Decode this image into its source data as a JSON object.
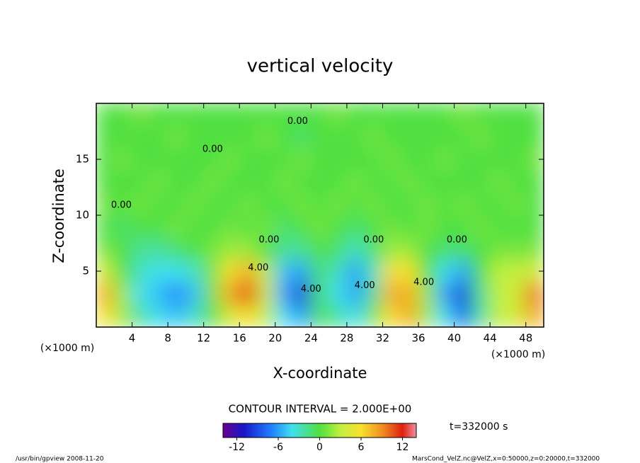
{
  "chart_data": {
    "type": "heatmap",
    "title": "vertical velocity",
    "xlabel": "X-coordinate",
    "ylabel": "Z-coordinate",
    "x_unit": "(×1000 m)",
    "y_unit": "(×1000 m)",
    "contour_interval": "CONTOUR INTERVAL = 2.000E+00",
    "time_label": "t=332000 s",
    "footer_left": "/usr/bin/gpview  2008-11-20",
    "footer_right": "MarsCond_VelZ.nc@VelZ,x=0:50000,z=0:20000,t=332000",
    "x": [
      1,
      3,
      5,
      7,
      9,
      11,
      13,
      15,
      17,
      19,
      21,
      23,
      25,
      27,
      29,
      31,
      33,
      35,
      37,
      39,
      41,
      43,
      45,
      47,
      49
    ],
    "y": [
      1,
      3,
      5,
      7,
      9,
      11,
      13,
      15,
      17,
      19
    ],
    "z": [
      [
        6,
        2,
        -2,
        -4,
        -5,
        -3,
        0,
        4,
        6,
        3,
        -4,
        -6,
        0,
        -2,
        -4,
        1,
        6,
        8,
        2,
        -4,
        -8,
        -2,
        3,
        4,
        8
      ],
      [
        8,
        2,
        -4,
        -5,
        -7,
        -5,
        1,
        8,
        12,
        4,
        -6,
        -10,
        -1,
        -4,
        -6,
        -2,
        8,
        8,
        2,
        -6,
        -10,
        -2,
        3,
        4,
        10
      ],
      [
        4,
        0,
        -3,
        -4,
        -4,
        -3,
        1,
        6,
        8,
        3,
        -5,
        -6,
        -1,
        -3,
        -6,
        -3,
        6,
        6,
        0,
        -4,
        -6,
        0,
        3,
        3,
        4
      ],
      [
        1,
        0,
        -2,
        -2,
        -1,
        0,
        1,
        2,
        2,
        0,
        -2,
        -2,
        0,
        -1,
        -3,
        -1,
        2,
        2,
        0,
        -1,
        -1,
        0,
        1,
        1,
        1
      ],
      [
        0,
        -1,
        0,
        0,
        1,
        0,
        0,
        1,
        0,
        1,
        -1,
        0,
        1,
        0,
        -1,
        0,
        1,
        0,
        1,
        0,
        0,
        1,
        0,
        0,
        0
      ],
      [
        1,
        0,
        1,
        0,
        0,
        1,
        0,
        0,
        1,
        0,
        0,
        1,
        0,
        1,
        0,
        1,
        0,
        0,
        1,
        0,
        1,
        0,
        0,
        1,
        0
      ],
      [
        0,
        0,
        0,
        1,
        0,
        0,
        1,
        0,
        0,
        0,
        1,
        0,
        0,
        0,
        1,
        0,
        0,
        1,
        0,
        0,
        0,
        0,
        1,
        0,
        0
      ],
      [
        0,
        1,
        0,
        0,
        0,
        0,
        0,
        1,
        0,
        0,
        0,
        1,
        0,
        0,
        0,
        0,
        1,
        0,
        0,
        1,
        0,
        0,
        0,
        0,
        1
      ],
      [
        0,
        0,
        0,
        0,
        1,
        0,
        0,
        0,
        0,
        1,
        0,
        -1,
        0,
        0,
        0,
        1,
        0,
        0,
        0,
        0,
        0,
        1,
        0,
        0,
        0
      ],
      [
        0,
        0,
        1,
        0,
        0,
        0,
        0,
        0,
        0,
        0,
        0,
        0,
        0,
        1,
        0,
        0,
        0,
        0,
        0,
        0,
        1,
        0,
        0,
        0,
        0
      ]
    ],
    "xlim": [
      0,
      50
    ],
    "ylim": [
      0,
      20
    ],
    "xticks": [
      4,
      8,
      12,
      16,
      20,
      24,
      28,
      32,
      36,
      40,
      44,
      48
    ],
    "yticks": [
      5,
      10,
      15
    ],
    "zlim": [
      -14,
      14
    ],
    "colorbar_ticks": [
      -12,
      -6,
      0,
      6,
      12
    ],
    "colormap": [
      {
        "value": -14,
        "color": "#6a0090"
      },
      {
        "value": -11,
        "color": "#1818c8"
      },
      {
        "value": -7,
        "color": "#2080ff"
      },
      {
        "value": -4,
        "color": "#40e0f0"
      },
      {
        "value": 0,
        "color": "#50e040"
      },
      {
        "value": 3,
        "color": "#c0f040"
      },
      {
        "value": 6,
        "color": "#f8e030"
      },
      {
        "value": 9,
        "color": "#f09020"
      },
      {
        "value": 12,
        "color": "#e02010"
      },
      {
        "value": 14,
        "color": "#f090a0"
      }
    ],
    "annotations": [
      {
        "text": "0.00",
        "x": 2.8,
        "y": 10.9
      },
      {
        "text": "0.00",
        "x": 13,
        "y": 15.9
      },
      {
        "text": "0.00",
        "x": 22.5,
        "y": 18.4
      },
      {
        "text": "0.00",
        "x": 19.3,
        "y": 7.8
      },
      {
        "text": "4.00",
        "x": 18.1,
        "y": 5.3
      },
      {
        "text": "4.00",
        "x": 24,
        "y": 3.4
      },
      {
        "text": "4.00",
        "x": 30,
        "y": 3.7
      },
      {
        "text": "0.00",
        "x": 31,
        "y": 7.8
      },
      {
        "text": "4.00",
        "x": 36.6,
        "y": 4
      },
      {
        "text": "0.00",
        "x": 40.3,
        "y": 7.8
      }
    ]
  }
}
